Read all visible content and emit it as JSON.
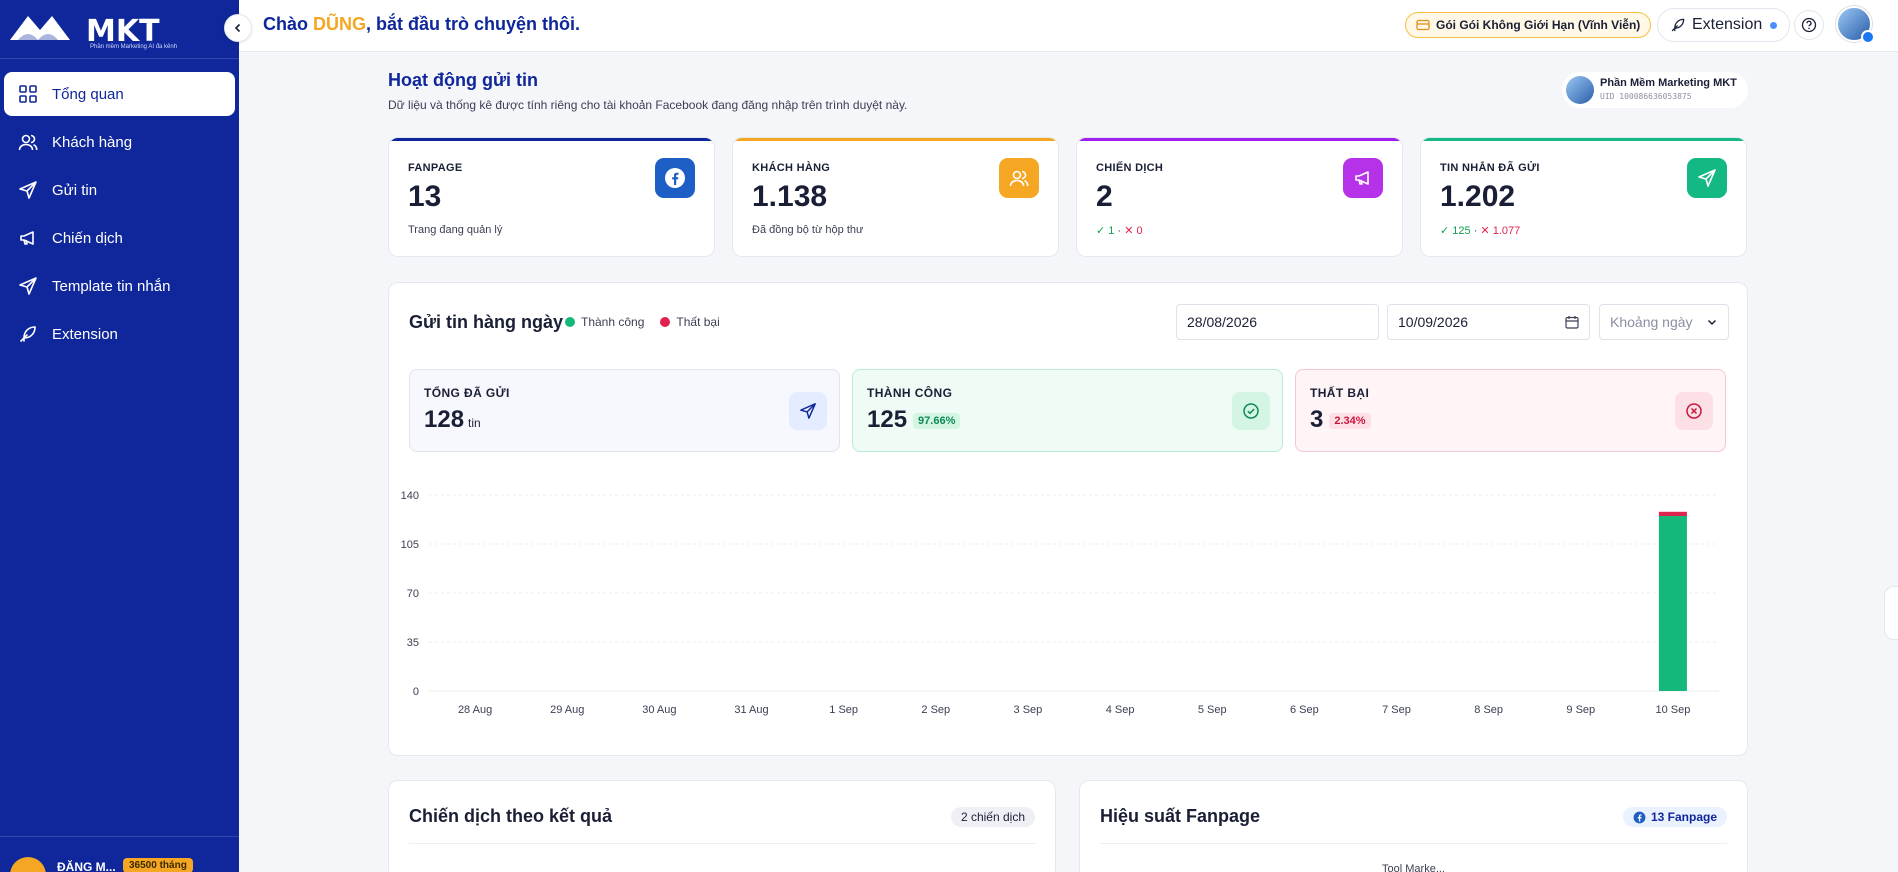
{
  "app": {
    "logo_text": "MKT",
    "logo_subtext": "Phần mềm Marketing AI đa kênh"
  },
  "sidebar": {
    "items": [
      {
        "label": "Tổng quan",
        "icon": "grid-icon",
        "active": true
      },
      {
        "label": "Khách hàng",
        "icon": "users-icon",
        "active": false
      },
      {
        "label": "Gửi tin",
        "icon": "send-icon",
        "active": false
      },
      {
        "label": "Chiến dịch",
        "icon": "megaphone-icon",
        "active": false
      },
      {
        "label": "Template tin nhắn",
        "icon": "send-icon",
        "active": false
      },
      {
        "label": "Extension",
        "icon": "feather-icon",
        "active": false
      }
    ],
    "user": {
      "name": "ĐẶNG M...",
      "badge": "36500 tháng"
    }
  },
  "topbar": {
    "greeting_prefix": "Chào ",
    "greeting_name": "DŨNG",
    "greeting_suffix": ", bắt đầu trò chuyện thôi.",
    "plan_label": "Gói Gói Không Giới Hạn (Vĩnh Viễn)",
    "extension_label": "Extension"
  },
  "overview": {
    "title": "Hoạt động gửi tin",
    "subtitle": "Dữ liệu và thống kê được tính riêng cho tài khoản Facebook đang đăng nhập trên trình duyệt này.",
    "account": {
      "name": "Phần Mềm Marketing MKT",
      "uid": "UID 100086636053875"
    }
  },
  "stats": [
    {
      "label": "FANPAGE",
      "value": "13",
      "sub": "Trang đang quản lý",
      "color": "#0f279a",
      "icon": "facebook-icon"
    },
    {
      "label": "KHÁCH HÀNG",
      "value": "1.138",
      "sub": "Đã đồng bộ từ hộp thư",
      "color": "#f5a623",
      "icon": "users-icon"
    },
    {
      "label": "CHIẾN DỊCH",
      "value": "2",
      "sub_ok": "1",
      "sub_bad": "0",
      "color": "#a020f0",
      "icon": "megaphone-icon"
    },
    {
      "label": "TIN NHẮN ĐÃ GỬI",
      "value": "1.202",
      "sub_ok": "125",
      "sub_bad": "1.077",
      "color": "#14b885",
      "icon": "send-icon"
    }
  ],
  "daily": {
    "title": "Gửi tin hàng ngày",
    "legend_success": "Thành công",
    "legend_fail": "Thất bại",
    "date_from": "28/08/2026",
    "date_to": "10/09/2026",
    "range_placeholder": "Khoảng ngày",
    "kpis": [
      {
        "label": "TỔNG ĐÃ GỬI",
        "value": "128",
        "unit": "tin"
      },
      {
        "label": "THÀNH CÔNG",
        "value": "125",
        "pct": "97.66%"
      },
      {
        "label": "THẤT BẠI",
        "value": "3",
        "pct": "2.34%"
      }
    ]
  },
  "chart_data": {
    "type": "bar",
    "stacked": true,
    "categories": [
      "28 Aug",
      "29 Aug",
      "30 Aug",
      "31 Aug",
      "1 Sep",
      "2 Sep",
      "3 Sep",
      "4 Sep",
      "5 Sep",
      "6 Sep",
      "7 Sep",
      "8 Sep",
      "9 Sep",
      "10 Sep"
    ],
    "series": [
      {
        "name": "Thành công",
        "color": "#14b87a",
        "values": [
          0,
          0,
          0,
          0,
          0,
          0,
          0,
          0,
          0,
          0,
          0,
          0,
          0,
          125
        ]
      },
      {
        "name": "Thất bại",
        "color": "#e0234e",
        "values": [
          0,
          0,
          0,
          0,
          0,
          0,
          0,
          0,
          0,
          0,
          0,
          0,
          0,
          3
        ]
      }
    ],
    "ylim": [
      0,
      140
    ],
    "yticks": [
      0,
      35,
      70,
      105,
      140
    ],
    "grid": true
  },
  "bottom": {
    "campaigns_title": "Chiến dịch theo kết quả",
    "campaigns_count": "2 chiến dịch",
    "fanpage_title": "Hiệu suất Fanpage",
    "fanpage_count": "13 Fanpage",
    "fanpage_peek": "Tool Marke..."
  }
}
